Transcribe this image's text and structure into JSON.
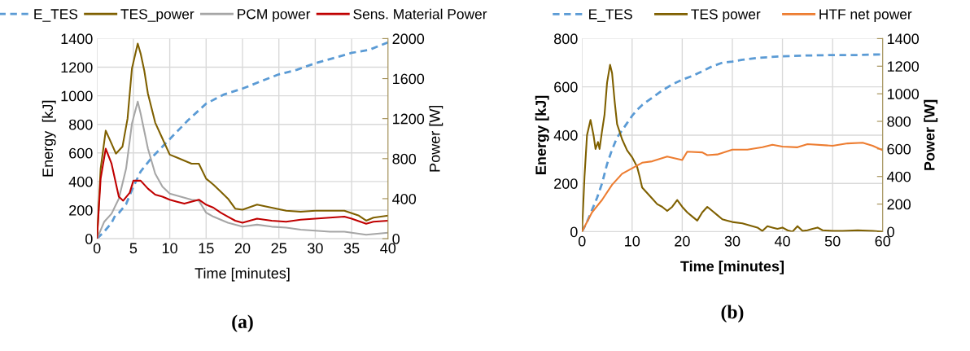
{
  "chart_data": [
    {
      "type": "line",
      "xlabel": "Time [minutes]",
      "ylabel": "Energy  [kJ]",
      "y2label": "Power [W]",
      "annotations": [
        "(a)"
      ],
      "grid": true,
      "legend": "top",
      "xlim": [
        0,
        40
      ],
      "xticks": [
        0,
        5,
        10,
        15,
        20,
        25,
        30,
        35,
        40
      ],
      "ylim": [
        0,
        1400
      ],
      "yticks": [
        0,
        200,
        400,
        600,
        800,
        1000,
        1200,
        1400
      ],
      "y2lim": [
        0,
        2000
      ],
      "y2ticks": [
        0,
        400,
        800,
        1200,
        1600,
        2000
      ],
      "series": [
        {
          "name": "E_TES",
          "color": "#5b9bd5",
          "line_style": "dashed",
          "x": [
            0,
            1,
            2,
            2.5,
            3,
            4,
            5,
            6,
            7.5,
            10,
            12.5,
            15,
            17.5,
            20,
            22.5,
            25,
            27.5,
            30,
            32.5,
            35,
            37.5,
            40
          ],
          "values": [
            0,
            50,
            110,
            162,
            180,
            242,
            364,
            470,
            566,
            697,
            828,
            945,
            1010,
            1050,
            1101,
            1150,
            1182,
            1228,
            1263,
            1300,
            1323,
            1374
          ]
        },
        {
          "name": "TES_power",
          "color": "#7f6000",
          "axis": "y2",
          "line_style": "solid",
          "x": [
            0,
            0.5,
            1.2,
            2,
            2.6,
            3.5,
            4.2,
            4.8,
            5.6,
            6,
            6.5,
            7,
            8,
            9,
            10,
            11,
            12,
            13,
            14,
            15,
            16,
            17,
            18,
            19,
            20,
            22,
            24,
            26,
            28,
            30,
            32,
            34,
            36,
            37,
            38,
            40
          ],
          "values": [
            0,
            700,
            1080,
            950,
            850,
            920,
            1200,
            1700,
            1950,
            1850,
            1680,
            1450,
            1160,
            1000,
            840,
            810,
            780,
            750,
            750,
            600,
            540,
            470,
            400,
            300,
            290,
            340,
            310,
            280,
            270,
            280,
            280,
            280,
            230,
            180,
            210,
            230
          ]
        },
        {
          "name": "PCM power",
          "color": "#a6a6a6",
          "axis": "y2",
          "line_style": "solid",
          "x": [
            0,
            1,
            2,
            3,
            4,
            4.8,
            5.6,
            6,
            7,
            8,
            9,
            10,
            11,
            12,
            13,
            14,
            15,
            16,
            18,
            20,
            22,
            24,
            26,
            28,
            30,
            32,
            34,
            36,
            37,
            40
          ],
          "values": [
            0,
            170,
            250,
            400,
            700,
            1150,
            1370,
            1250,
            900,
            650,
            520,
            450,
            430,
            410,
            390,
            380,
            260,
            220,
            160,
            120,
            140,
            120,
            110,
            90,
            80,
            70,
            70,
            50,
            40,
            60
          ]
        },
        {
          "name": "Sens. Material Power",
          "color": "#c00000",
          "axis": "y2",
          "line_style": "solid",
          "x": [
            0,
            0.5,
            1.2,
            2,
            3,
            3.6,
            4.5,
            5,
            6,
            7,
            8,
            9,
            10,
            11,
            12,
            14,
            15,
            16,
            17,
            18,
            19,
            20,
            22,
            24,
            26,
            28,
            30,
            32,
            34,
            35,
            37,
            38,
            40
          ],
          "values": [
            0,
            600,
            900,
            750,
            420,
            380,
            460,
            580,
            580,
            500,
            440,
            420,
            390,
            370,
            350,
            390,
            340,
            310,
            260,
            220,
            180,
            160,
            200,
            180,
            170,
            190,
            200,
            210,
            220,
            200,
            150,
            170,
            180
          ]
        }
      ]
    },
    {
      "type": "line",
      "xlabel": "Time [minutes]",
      "ylabel": "Energy [kJ]",
      "y2label": "Power [W]",
      "annotations": [
        "(b)"
      ],
      "grid": true,
      "legend": "top",
      "xlim": [
        0,
        60
      ],
      "xticks": [
        0,
        10,
        20,
        30,
        40,
        50,
        60
      ],
      "ylim": [
        0,
        800
      ],
      "yticks": [
        0,
        200,
        400,
        600,
        800
      ],
      "y2lim": [
        0,
        1400
      ],
      "y2ticks": [
        0,
        200,
        400,
        600,
        800,
        1000,
        1200,
        1400
      ],
      "series": [
        {
          "name": "E_TES",
          "color": "#5b9bd5",
          "line_style": "dashed",
          "x": [
            0,
            1,
            2,
            3,
            4,
            5,
            6,
            7,
            8,
            9,
            10,
            11,
            12,
            14,
            16,
            18,
            20,
            22,
            24,
            26,
            28,
            30,
            32,
            35,
            40,
            45,
            50,
            55,
            60
          ],
          "values": [
            0,
            40,
            90,
            140,
            200,
            280,
            340,
            390,
            420,
            450,
            480,
            505,
            525,
            555,
            585,
            610,
            630,
            645,
            665,
            685,
            700,
            705,
            712,
            720,
            727,
            730,
            732,
            732,
            735
          ]
        },
        {
          "name": "TES power",
          "color": "#7f6000",
          "axis": "y2",
          "line_style": "solid",
          "x": [
            0,
            0.5,
            1,
            1.7,
            2.3,
            2.7,
            3.2,
            3.5,
            4,
            4.5,
            5,
            5.6,
            6,
            6.5,
            7,
            8,
            9,
            10,
            11,
            11.5,
            12,
            13,
            14,
            15,
            16,
            17,
            18,
            19,
            20,
            21,
            22,
            23,
            24,
            25,
            26,
            27,
            28,
            29,
            30,
            32,
            34,
            35,
            36,
            37,
            38,
            39,
            40,
            41,
            42,
            43,
            44,
            45,
            46,
            47,
            48,
            50,
            52,
            55,
            58,
            60
          ],
          "values": [
            0,
            400,
            700,
            810,
            700,
            600,
            650,
            600,
            730,
            850,
            1080,
            1210,
            1150,
            950,
            780,
            670,
            590,
            540,
            470,
            400,
            320,
            280,
            240,
            200,
            180,
            150,
            180,
            230,
            180,
            140,
            110,
            80,
            140,
            180,
            150,
            120,
            90,
            80,
            70,
            60,
            40,
            30,
            5,
            40,
            30,
            20,
            30,
            10,
            0,
            40,
            5,
            10,
            20,
            30,
            10,
            5,
            5,
            10,
            5,
            0
          ]
        },
        {
          "name": "HTF net power",
          "color": "#ed7d31",
          "axis": "y2",
          "line_style": "solid",
          "x": [
            0,
            2,
            4,
            6,
            8,
            10,
            12,
            14,
            17,
            20,
            21,
            24,
            25,
            27,
            30,
            33,
            36,
            38,
            40,
            43,
            45,
            50,
            53,
            56,
            58,
            60
          ],
          "values": [
            0,
            140,
            230,
            340,
            420,
            460,
            500,
            510,
            545,
            520,
            580,
            575,
            555,
            560,
            595,
            595,
            612,
            630,
            617,
            612,
            635,
            623,
            640,
            645,
            623,
            590
          ]
        }
      ]
    }
  ]
}
